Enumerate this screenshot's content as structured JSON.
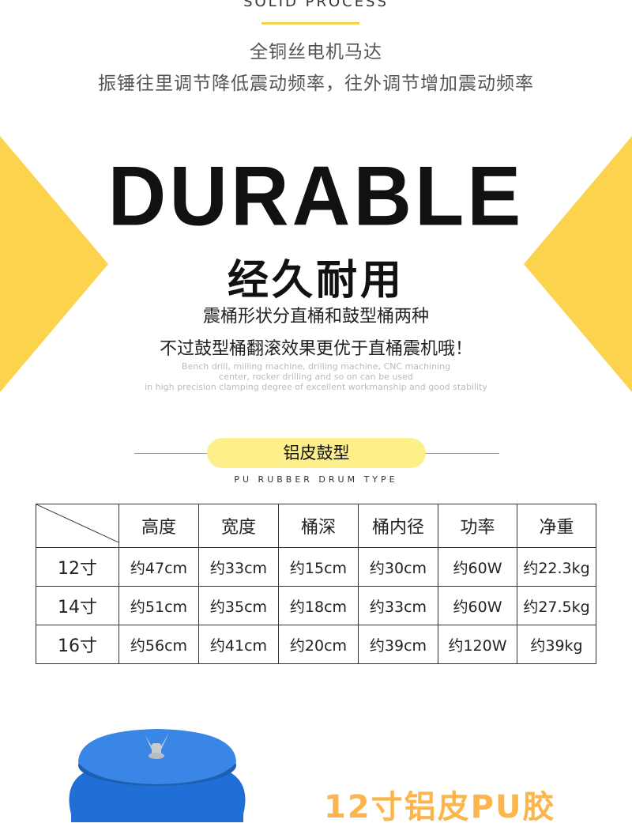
{
  "header": {
    "english_title": "SOLID PROCESS",
    "line1": "全铜丝电机马达",
    "line2": "振锤往里调节降低震动频率，往外调节增加震动频率",
    "accent_color": "#f8d24a"
  },
  "hero": {
    "title_en": "DURABLE",
    "title_cn": "经久耐用",
    "desc1": "震桶形状分直桶和鼓型桶两种",
    "desc2": "不过鼓型桶翻滚效果更优于直桶震机哦！",
    "en_lines": [
      "Bench drill, milling machine, drilling machine, CNC machining",
      "center, rocker drilling and so on can be used",
      "in high precision clamping degree of excellent workmanship and good stability"
    ],
    "triangle_color": "#fcd34d"
  },
  "section": {
    "label": "铝皮鼓型",
    "label_en": "PU RUBBER DRUM TYPE",
    "pill_color": "#fdf08a"
  },
  "table": {
    "headers": [
      "",
      "高度",
      "宽度",
      "桶深",
      "桶内径",
      "功率",
      "净重"
    ],
    "rows": [
      [
        "12寸",
        "约47cm",
        "约33cm",
        "约15cm",
        "约30cm",
        "约60W",
        "约22.3kg"
      ],
      [
        "14寸",
        "约51cm",
        "约35cm",
        "约18cm",
        "约33cm",
        "约60W",
        "约27.5kg"
      ],
      [
        "16寸",
        "约56cm",
        "约41cm",
        "约20cm",
        "约39cm",
        "约120W",
        "约39kg"
      ]
    ]
  },
  "product": {
    "title": "12寸铝皮PU胶",
    "drum_color": "#2f7fe0"
  }
}
